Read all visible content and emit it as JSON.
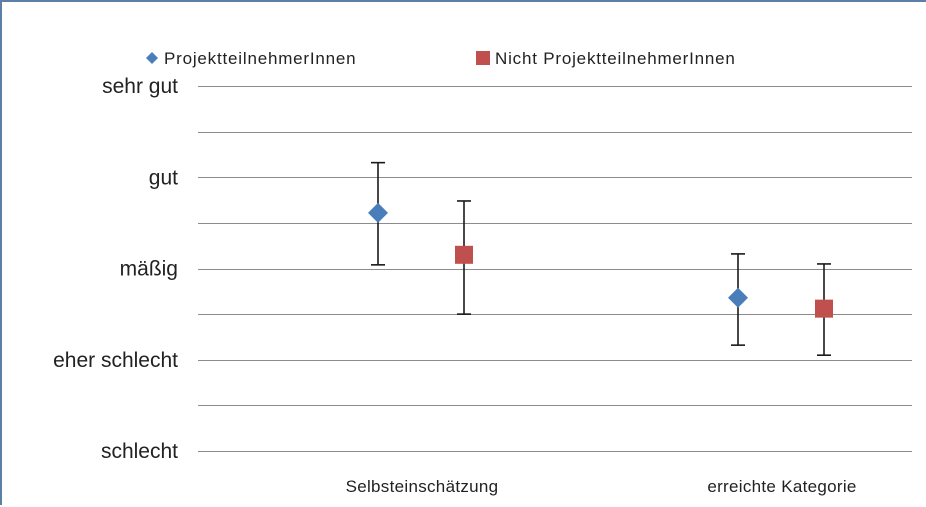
{
  "chart_data": {
    "type": "scatter",
    "title": "",
    "xlabel": "",
    "ylabel": "",
    "categories": [
      "Selbsteinschätzung",
      "erreichte Kategorie"
    ],
    "y_tick_labels": [
      "schlecht",
      "eher schlecht",
      "mäßig",
      "gut",
      "sehr gut"
    ],
    "y_tick_values": [
      1,
      2,
      3,
      4,
      5
    ],
    "ylim": [
      1,
      5
    ],
    "grid": true,
    "legend_position": "top",
    "series": [
      {
        "name": "ProjektteilnehmerInnen",
        "marker": "diamond",
        "color": "#4a7ebb",
        "values": [
          3.61,
          2.68
        ],
        "error_low": [
          3.04,
          2.16
        ],
        "error_high": [
          4.16,
          3.16
        ]
      },
      {
        "name": "Nicht ProjektteilnehmerInnen",
        "marker": "square",
        "color": "#c0504d",
        "values": [
          3.15,
          2.56
        ],
        "error_low": [
          2.5,
          2.05
        ],
        "error_high": [
          3.74,
          3.05
        ]
      }
    ]
  }
}
